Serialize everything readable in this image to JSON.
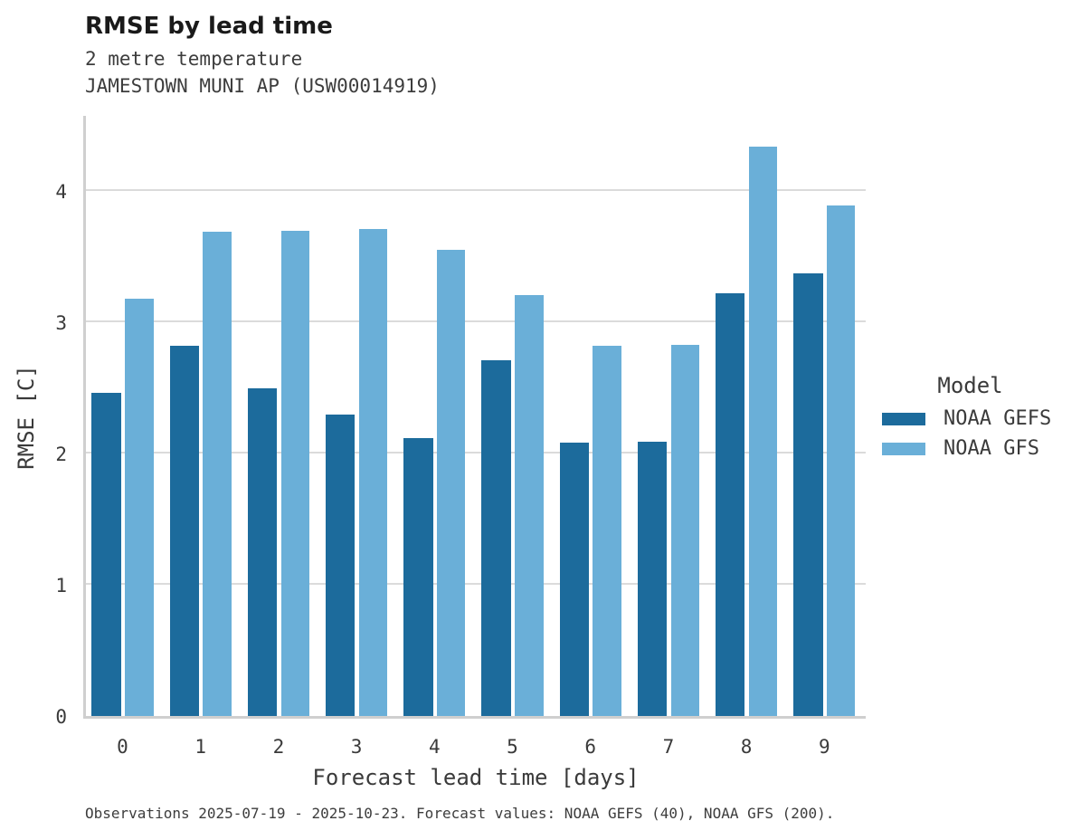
{
  "header": {
    "title": "RMSE by lead time",
    "subtitle_line1": "2 metre temperature",
    "subtitle_line2": "JAMESTOWN MUNI AP (USW00014919)"
  },
  "footer": {
    "text": "Observations 2025-07-19 - 2025-10-23. Forecast values: NOAA GEFS (40), NOAA GFS (200)."
  },
  "legend": {
    "title": "Model"
  },
  "colors": {
    "gefs_dark_blue": "#1C6B9C",
    "gfs_light_blue": "#6AAFD8",
    "gridline": "#DBDBDB",
    "axis_line": "#CFCFCF",
    "title_text": "#1A1A1A",
    "body_text": "#3A3A3A"
  },
  "chart_data": {
    "type": "bar",
    "title": "RMSE by lead time",
    "subtitle": [
      "2 metre temperature",
      "JAMESTOWN MUNI AP (USW00014919)"
    ],
    "xlabel": "Forecast lead time [days]",
    "ylabel": "RMSE [C]",
    "categories": [
      0,
      1,
      2,
      3,
      4,
      5,
      6,
      7,
      8,
      9
    ],
    "series": [
      {
        "name": "NOAA GEFS",
        "color": "#1C6B9C",
        "values": [
          2.46,
          2.82,
          2.5,
          2.3,
          2.12,
          2.71,
          2.08,
          2.09,
          3.22,
          3.37
        ]
      },
      {
        "name": "NOAA GFS",
        "color": "#6AAFD8",
        "values": [
          3.18,
          3.69,
          3.7,
          3.71,
          3.55,
          3.21,
          2.82,
          2.83,
          4.34,
          3.89
        ]
      }
    ],
    "ylim": [
      0,
      4.6
    ],
    "yticks": [
      0,
      1,
      2,
      3,
      4
    ],
    "grid": true,
    "legend_title": "Model",
    "legend_position": "right"
  }
}
